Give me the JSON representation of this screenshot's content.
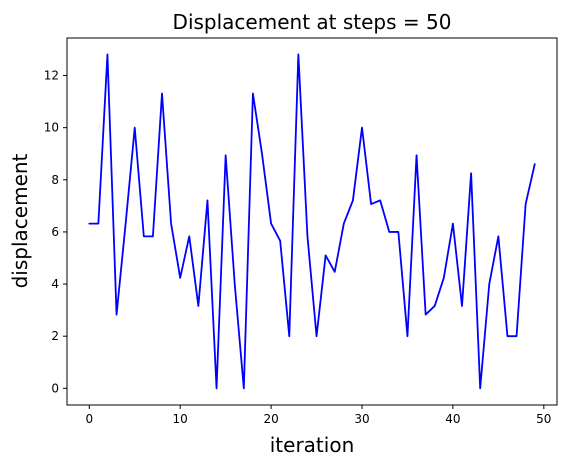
{
  "chart_data": {
    "type": "line",
    "title": "Displacement at steps = 50",
    "xlabel": "iteration",
    "ylabel": "displacement",
    "xlim": [
      -2.45,
      51.45
    ],
    "ylim": [
      -0.64,
      13.44
    ],
    "grid": false,
    "x_ticks": [
      0,
      10,
      20,
      30,
      40,
      50
    ],
    "y_ticks": [
      0,
      2,
      4,
      6,
      8,
      10,
      12
    ],
    "series": [
      {
        "color": "#0000ff",
        "x": [
          0,
          1,
          2,
          3,
          4,
          5,
          6,
          7,
          8,
          9,
          10,
          11,
          12,
          13,
          14,
          15,
          16,
          17,
          18,
          19,
          20,
          21,
          22,
          23,
          24,
          25,
          26,
          27,
          28,
          29,
          30,
          31,
          32,
          33,
          34,
          35,
          36,
          37,
          38,
          39,
          40,
          41,
          42,
          43,
          44,
          45,
          46,
          47,
          48,
          49
        ],
        "values": [
          6.32,
          6.32,
          12.81,
          2.83,
          6.32,
          10.0,
          5.83,
          5.83,
          11.31,
          6.32,
          4.24,
          5.83,
          3.16,
          7.21,
          0.0,
          8.94,
          4.0,
          0.0,
          11.31,
          9.0,
          6.32,
          5.66,
          2.0,
          12.81,
          5.83,
          2.0,
          5.1,
          4.47,
          6.32,
          7.21,
          10.0,
          7.07,
          7.21,
          6.0,
          6.0,
          2.0,
          8.94,
          2.83,
          3.16,
          4.24,
          6.32,
          3.16,
          8.25,
          0.0,
          4.0,
          5.83,
          2.0,
          2.0,
          7.07,
          8.6
        ]
      }
    ]
  }
}
